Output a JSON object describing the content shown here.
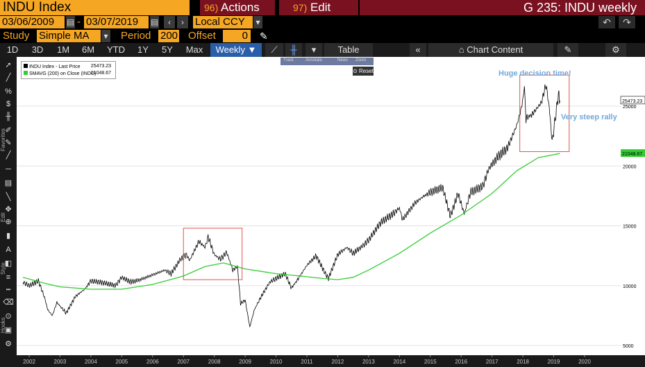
{
  "header": {
    "ticker": "INDU Index",
    "actions": {
      "num": "96)",
      "label": "Actions"
    },
    "edit": {
      "num": "97)",
      "label": "Edit"
    },
    "window_title": "G 235: INDU weekly"
  },
  "range": {
    "start": "03/06/2009",
    "sep": "-",
    "end": "03/07/2019",
    "currency": "Local CCY",
    "prev": "‹",
    "next": "›"
  },
  "study": {
    "label": "Study",
    "value": "Simple MA",
    "period_label": "Period",
    "period": "200",
    "offset_label": "Offset",
    "offset": "0"
  },
  "undo": {
    "undo": "↶",
    "redo": "↷"
  },
  "tabs": [
    "1D",
    "3D",
    "1M",
    "6M",
    "YTD",
    "1Y",
    "5Y",
    "Max"
  ],
  "frequency": "Weekly ▼",
  "table_label": "Table",
  "chart_content_label": "Chart Content",
  "side_labels": {
    "favorites": "Favorites",
    "edit": "Edit",
    "style": "Style",
    "hooks": "Hooks"
  },
  "overlay": {
    "items": [
      "Track",
      "Annotate",
      "News",
      "Zoom"
    ],
    "reset": "Reset"
  },
  "legend": [
    {
      "label": "INDU Index - Last Price",
      "value": "25473.23",
      "color": "#000000"
    },
    {
      "label": "SMAVG (200) on Close (INDU)",
      "value": "21048.67",
      "color": "#33cc33"
    }
  ],
  "annotations": {
    "top": "Huge decision time!",
    "right": "Very steep rally"
  },
  "chart_data": {
    "type": "line",
    "x_labels": [
      "2002",
      "2003",
      "2004",
      "2005",
      "2006",
      "2007",
      "2008",
      "2009",
      "2010",
      "2011",
      "2012",
      "2013",
      "2014",
      "2015",
      "2016",
      "2017",
      "2018",
      "2019",
      "2020"
    ],
    "y_ticks": [
      5000,
      10000,
      15000,
      20000,
      25000
    ],
    "ylim": [
      4200,
      29800
    ],
    "last_price_label": "25473.23",
    "sma_label": "21048.67",
    "series": [
      {
        "name": "INDU Index - Last Price",
        "color": "#000000",
        "points": [
          [
            2001.8,
            10300
          ],
          [
            2002.0,
            10000
          ],
          [
            2002.3,
            10400
          ],
          [
            2002.5,
            9000
          ],
          [
            2002.6,
            8000
          ],
          [
            2002.75,
            7500
          ],
          [
            2002.9,
            8600
          ],
          [
            2003.1,
            8000
          ],
          [
            2003.2,
            7700
          ],
          [
            2003.5,
            9100
          ],
          [
            2003.8,
            9700
          ],
          [
            2004.0,
            10400
          ],
          [
            2004.5,
            10200
          ],
          [
            2004.8,
            10000
          ],
          [
            2005.0,
            10700
          ],
          [
            2005.3,
            10300
          ],
          [
            2005.6,
            10500
          ],
          [
            2006.0,
            10900
          ],
          [
            2006.4,
            11300
          ],
          [
            2006.6,
            11000
          ],
          [
            2006.9,
            12200
          ],
          [
            2007.1,
            12600
          ],
          [
            2007.2,
            12100
          ],
          [
            2007.5,
            13700
          ],
          [
            2007.7,
            13200
          ],
          [
            2007.8,
            14100
          ],
          [
            2008.0,
            12600
          ],
          [
            2008.2,
            12200
          ],
          [
            2008.4,
            12800
          ],
          [
            2008.6,
            11300
          ],
          [
            2008.75,
            11600
          ],
          [
            2008.85,
            8500
          ],
          [
            2009.0,
            8800
          ],
          [
            2009.15,
            6550
          ],
          [
            2009.3,
            8000
          ],
          [
            2009.5,
            9000
          ],
          [
            2009.8,
            10300
          ],
          [
            2010.0,
            10600
          ],
          [
            2010.3,
            11000
          ],
          [
            2010.5,
            9800
          ],
          [
            2010.7,
            10500
          ],
          [
            2011.0,
            11700
          ],
          [
            2011.3,
            12500
          ],
          [
            2011.6,
            11000
          ],
          [
            2011.7,
            10600
          ],
          [
            2012.0,
            12600
          ],
          [
            2012.3,
            13200
          ],
          [
            2012.5,
            12700
          ],
          [
            2012.8,
            13300
          ],
          [
            2013.0,
            13800
          ],
          [
            2013.4,
            15300
          ],
          [
            2013.8,
            16000
          ],
          [
            2014.0,
            16500
          ],
          [
            2014.1,
            15500
          ],
          [
            2014.5,
            16900
          ],
          [
            2014.8,
            17500
          ],
          [
            2015.0,
            17800
          ],
          [
            2015.4,
            18200
          ],
          [
            2015.65,
            15800
          ],
          [
            2015.9,
            17700
          ],
          [
            2016.1,
            16000
          ],
          [
            2016.3,
            17800
          ],
          [
            2016.7,
            18300
          ],
          [
            2016.9,
            19800
          ],
          [
            2017.2,
            20800
          ],
          [
            2017.5,
            21500
          ],
          [
            2017.8,
            23400
          ],
          [
            2017.95,
            24800
          ],
          [
            2018.05,
            26500
          ],
          [
            2018.1,
            24000
          ],
          [
            2018.3,
            24300
          ],
          [
            2018.6,
            25300
          ],
          [
            2018.75,
            26800
          ],
          [
            2018.85,
            25000
          ],
          [
            2018.95,
            22000
          ],
          [
            2019.05,
            24000
          ],
          [
            2019.15,
            26000
          ],
          [
            2019.2,
            25473
          ]
        ]
      },
      {
        "name": "SMAVG (200) on Close (INDU)",
        "color": "#33cc33",
        "points": [
          [
            2001.8,
            10700
          ],
          [
            2002.5,
            10200
          ],
          [
            2003.0,
            9900
          ],
          [
            2004.0,
            9700
          ],
          [
            2005.0,
            9700
          ],
          [
            2006.0,
            10100
          ],
          [
            2007.0,
            10800
          ],
          [
            2007.7,
            11600
          ],
          [
            2008.3,
            11900
          ],
          [
            2009.0,
            11400
          ],
          [
            2010.0,
            11000
          ],
          [
            2010.8,
            10800
          ],
          [
            2011.5,
            10600
          ],
          [
            2012.0,
            10500
          ],
          [
            2012.5,
            10700
          ],
          [
            2013.0,
            11300
          ],
          [
            2014.0,
            12700
          ],
          [
            2015.0,
            14400
          ],
          [
            2016.0,
            15900
          ],
          [
            2017.0,
            17700
          ],
          [
            2017.8,
            19600
          ],
          [
            2018.5,
            20700
          ],
          [
            2019.2,
            21049
          ]
        ]
      }
    ],
    "highlight_boxes": [
      {
        "x0": 2007.0,
        "x1": 2008.9,
        "y0": 10500,
        "y1": 14800
      },
      {
        "x0": 2017.9,
        "x1": 2019.5,
        "y0": 21200,
        "y1": 27600
      }
    ]
  }
}
